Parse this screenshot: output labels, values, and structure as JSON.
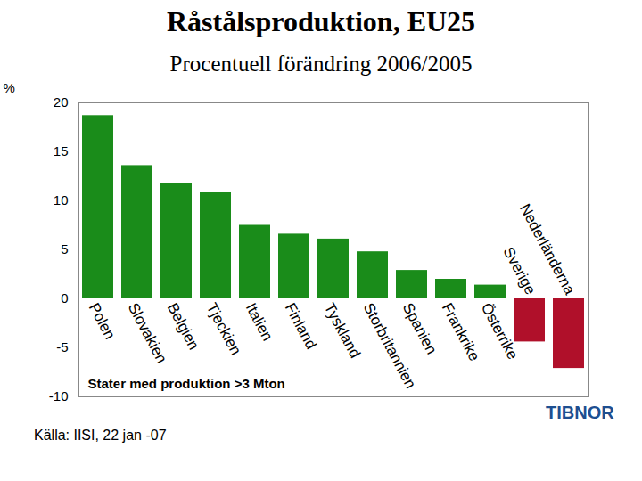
{
  "chart_data": {
    "type": "bar",
    "title": "Råstålsproduktion, EU25",
    "subtitle": "Procentuell förändring 2006/2005",
    "y_label": "%",
    "annotation": "Stater med produktion >3 Mton",
    "source": "Källa: IISI, 22 jan -07",
    "logo": "TIBNOR",
    "categories": [
      "Polen",
      "Slovakien",
      "Belgien",
      "Tjeckien",
      "Italien",
      "Finland",
      "Tyskland",
      "Storbritannien",
      "Spanien",
      "Frankrike",
      "Österrike",
      "Sverige",
      "Nederländerna"
    ],
    "values": [
      18.7,
      13.6,
      11.8,
      10.9,
      7.5,
      6.6,
      6.1,
      4.8,
      2.9,
      2.0,
      1.4,
      -4.4,
      -7.1
    ],
    "colors": [
      "#1a8c1a",
      "#1a8c1a",
      "#1a8c1a",
      "#1a8c1a",
      "#1a8c1a",
      "#1a8c1a",
      "#1a8c1a",
      "#1a8c1a",
      "#1a8c1a",
      "#1a8c1a",
      "#1a8c1a",
      "#b0102a",
      "#b0102a"
    ],
    "ylim": [
      -10,
      20
    ],
    "yticks": [
      -10,
      -5,
      0,
      5,
      10,
      15,
      20
    ],
    "grid": false
  }
}
